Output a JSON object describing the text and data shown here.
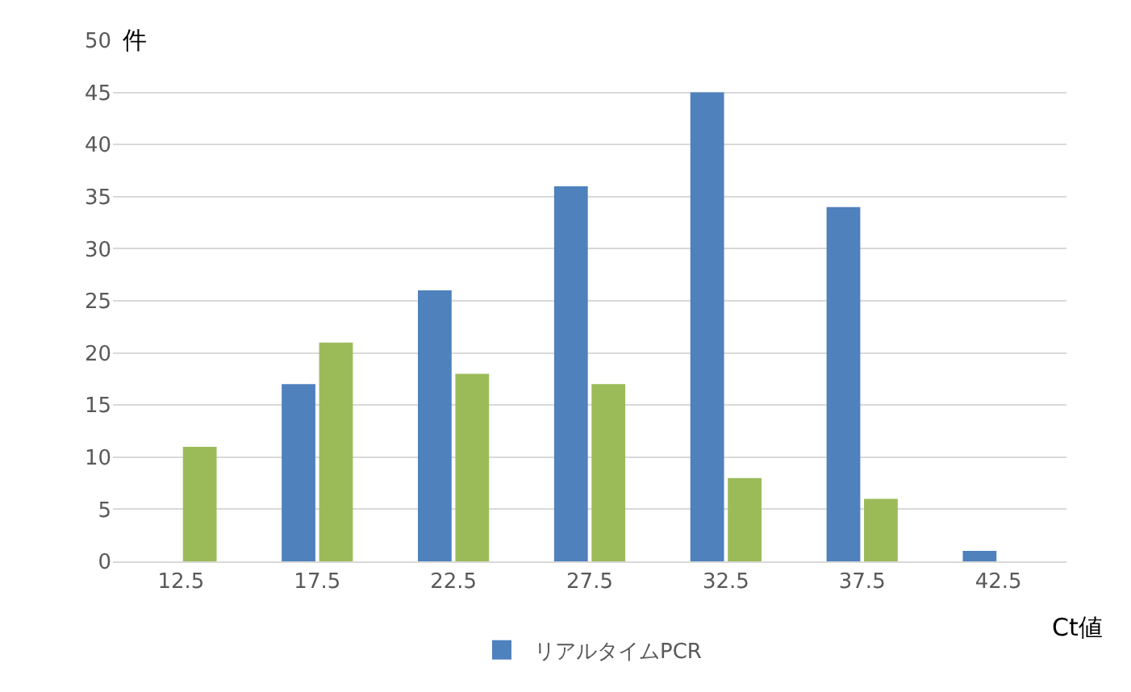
{
  "chart_data": {
    "type": "bar",
    "xlabel": "Ct値",
    "ylabel": "件",
    "categories": [
      "12.5",
      "17.5",
      "22.5",
      "27.5",
      "32.5",
      "37.5",
      "42.5"
    ],
    "series": [
      {
        "name": "リアルタイムPCR",
        "color": "#4f81bd",
        "values": [
          0,
          17,
          26,
          36,
          45,
          34,
          1
        ]
      },
      {
        "color": "#9bbb59",
        "values": [
          11,
          21,
          18,
          17,
          8,
          6,
          0
        ]
      }
    ],
    "ylim": [
      0,
      50
    ],
    "yticks": [
      0,
      5,
      10,
      15,
      20,
      25,
      30,
      35,
      40,
      45,
      50
    ],
    "grid": "y",
    "legend": "bottom"
  }
}
